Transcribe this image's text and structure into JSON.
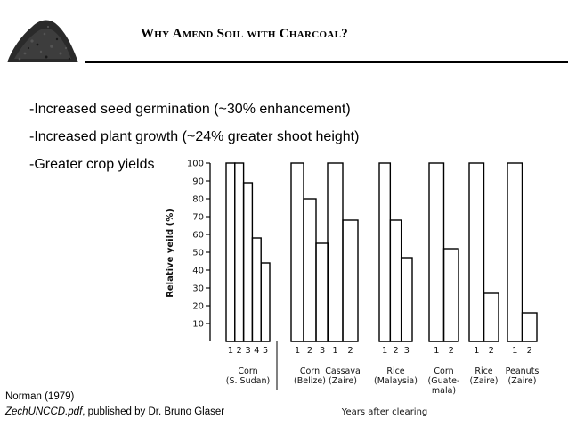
{
  "slide": {
    "title": "Why Amend Soil with Charcoal?",
    "bullets": [
      "-Increased seed germination (~30% enhancement)",
      "-Increased plant growth (~24% greater shoot height)",
      "-Greater crop yields"
    ],
    "citation": {
      "line1": "Norman (1979)",
      "file": "ZechUNCCD.pdf",
      "suffix": ", published by Dr. Bruno Glaser"
    },
    "colors": {
      "ink": "#000000",
      "soil": "#2a2a2a"
    }
  },
  "chart_data": {
    "type": "bar",
    "ylabel": "Relative yeild (%)",
    "xlabel": "Years after clearing",
    "ylim": [
      0,
      100
    ],
    "yticks": [
      10,
      20,
      30,
      40,
      50,
      60,
      70,
      80,
      90,
      100
    ],
    "groups": [
      {
        "crop": "Corn",
        "location": "(S. Sudan)",
        "years": [
          "1",
          "2",
          "3",
          "4",
          "5"
        ],
        "values": [
          100,
          100,
          89,
          58,
          44
        ]
      },
      {
        "crop": "Corn",
        "location": "(Belize)",
        "years": [
          "1",
          "2",
          "3"
        ],
        "values": [
          100,
          80,
          55
        ]
      },
      {
        "crop": "Cassava",
        "location": "(Zaire)",
        "years": [
          "1",
          "2"
        ],
        "values": [
          100,
          68
        ]
      },
      {
        "crop": "Rice",
        "location": "(Malaysia)",
        "years": [
          "1",
          "2",
          "3"
        ],
        "values": [
          100,
          68,
          47
        ]
      },
      {
        "crop": "Corn",
        "location": "(Guate-",
        "location2": "mala)",
        "years": [
          "1",
          "2"
        ],
        "values": [
          100,
          52
        ]
      },
      {
        "crop": "Rice",
        "location": "(Zaire)",
        "years": [
          "1",
          "2"
        ],
        "values": [
          100,
          27
        ]
      },
      {
        "crop": "Peanuts",
        "location": "(Zaire)",
        "years": [
          "1",
          "2"
        ],
        "values": [
          100,
          16
        ]
      }
    ]
  }
}
